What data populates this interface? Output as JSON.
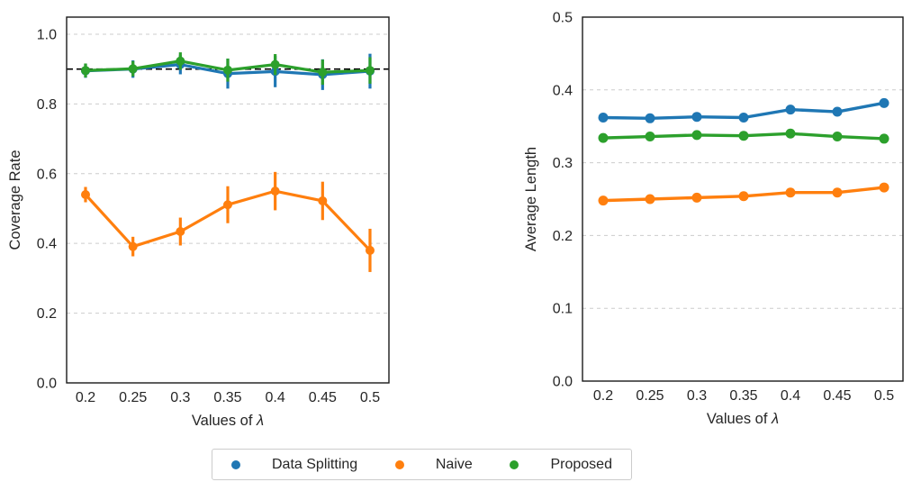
{
  "figure": {
    "background": "#ffffff",
    "text_color": "#262626",
    "grid_color": "#cccccc",
    "spine_color": "#1a1a1a",
    "reference_line_color": "#000000"
  },
  "legend": {
    "items": [
      {
        "label": "Data Splitting",
        "color": "#1f77b4",
        "marker": "circle"
      },
      {
        "label": "Naive",
        "color": "#ff7f0e",
        "marker": "circle"
      },
      {
        "label": "Proposed",
        "color": "#2ca02c",
        "marker": "circle"
      }
    ]
  },
  "chart_data": [
    {
      "type": "line",
      "title": "",
      "xlabel": "Values of λ",
      "ylabel": "Coverage Rate",
      "x": [
        0.2,
        0.25,
        0.3,
        0.35,
        0.4,
        0.45,
        0.5
      ],
      "xtick_labels": [
        "0.2",
        "0.25",
        "0.3",
        "0.35",
        "0.4",
        "0.45",
        "0.5"
      ],
      "ylim": [
        0,
        1.05
      ],
      "yticks": [
        0.0,
        0.2,
        0.4,
        0.6,
        0.8,
        1.0
      ],
      "ytick_labels": [
        "0.0",
        "0.2",
        "0.4",
        "0.6",
        "0.8",
        "1.0"
      ],
      "grid": true,
      "legend_position": "none",
      "reference_line": {
        "y": 0.9,
        "style": "dashed",
        "color": "#000000"
      },
      "series": [
        {
          "name": "Data Splitting",
          "color": "#1f77b4",
          "values": [
            0.895,
            0.9,
            0.913,
            0.887,
            0.893,
            0.884,
            0.894
          ],
          "err": [
            0.02,
            0.025,
            0.028,
            0.043,
            0.045,
            0.044,
            0.05
          ]
        },
        {
          "name": "Naive",
          "color": "#ff7f0e",
          "values": [
            0.54,
            0.391,
            0.434,
            0.511,
            0.55,
            0.522,
            0.38
          ],
          "err": [
            0.022,
            0.028,
            0.04,
            0.053,
            0.055,
            0.055,
            0.062
          ]
        },
        {
          "name": "Proposed",
          "color": "#2ca02c",
          "values": [
            0.896,
            0.901,
            0.923,
            0.897,
            0.913,
            0.891,
            0.896
          ],
          "err": [
            0.02,
            0.022,
            0.025,
            0.033,
            0.03,
            0.036,
            0.038
          ]
        }
      ]
    },
    {
      "type": "line",
      "title": "",
      "xlabel": "Values of λ",
      "ylabel": "Average Length",
      "x": [
        0.2,
        0.25,
        0.3,
        0.35,
        0.4,
        0.45,
        0.5
      ],
      "xtick_labels": [
        "0.2",
        "0.25",
        "0.3",
        "0.35",
        "0.4",
        "0.45",
        "0.5"
      ],
      "ylim": [
        0,
        0.5
      ],
      "yticks": [
        0.0,
        0.1,
        0.2,
        0.3,
        0.4,
        0.5
      ],
      "ytick_labels": [
        "0.0",
        "0.1",
        "0.2",
        "0.3",
        "0.4",
        "0.5"
      ],
      "grid": true,
      "legend_position": "none",
      "reference_line": null,
      "series": [
        {
          "name": "Data Splitting",
          "color": "#1f77b4",
          "values": [
            0.362,
            0.361,
            0.363,
            0.362,
            0.373,
            0.37,
            0.382
          ],
          "err": [
            0,
            0,
            0,
            0,
            0,
            0,
            0
          ]
        },
        {
          "name": "Naive",
          "color": "#ff7f0e",
          "values": [
            0.248,
            0.25,
            0.252,
            0.254,
            0.259,
            0.259,
            0.266
          ],
          "err": [
            0,
            0,
            0,
            0,
            0,
            0,
            0
          ]
        },
        {
          "name": "Proposed",
          "color": "#2ca02c",
          "values": [
            0.334,
            0.336,
            0.338,
            0.337,
            0.34,
            0.336,
            0.333
          ],
          "err": [
            0,
            0,
            0,
            0,
            0,
            0,
            0
          ]
        }
      ]
    }
  ]
}
